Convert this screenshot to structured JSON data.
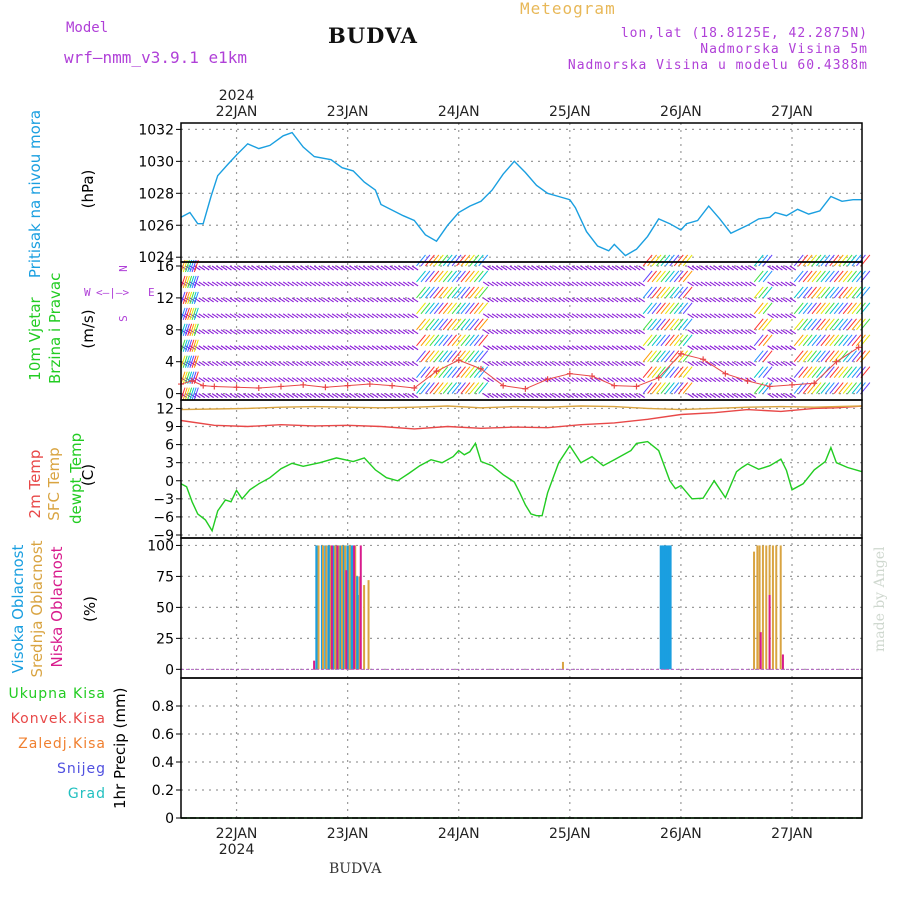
{
  "header": {
    "model_label": "Model",
    "model_name": "wrf–nmm_v3.9.1  e1km",
    "title": "BUDVA",
    "meteogram": "Meteogram",
    "lonlat": "lon,lat (18.8125E, 42.2875N)",
    "elevation": "Nadmorska Visina 5m",
    "model_elevation": "Nadmorska Visina u modelu 60.4388m"
  },
  "footer": {
    "title": "BUDVA",
    "credit": "made by Angel"
  },
  "time_axis": {
    "year": "2024",
    "days": [
      "22JAN",
      "23JAN",
      "24JAN",
      "25JAN",
      "26JAN",
      "27JAN"
    ],
    "range_days": [
      0,
      6.13
    ]
  },
  "panels": {
    "pressure": {
      "label": "Pritisak na nivou mora",
      "unit": "(hPa)"
    },
    "wind": {
      "label_1": "10m Vjetar",
      "label_2": "Brzina i Pravac",
      "unit": "(m/s)",
      "compass_w": "W",
      "compass_e": "E",
      "compass_n": "N",
      "compass_s": "S"
    },
    "temp": {
      "label_2m": "2m Temp",
      "label_sfc": "SFC Temp",
      "label_dew": "dewpt Temp",
      "unit": "(C)"
    },
    "cloud": {
      "label_high": "Visoka Oblacnost",
      "label_mid": "Srednja Oblacnost",
      "label_low": "Niska Oblacnost",
      "unit": "(%)"
    },
    "precip": {
      "unit": "1hr Precip (mm)",
      "labels": [
        "Ukupna Kisa",
        "Konvek.Kisa",
        "Zaledj.Kisa",
        "Snijeg",
        "Grad"
      ]
    }
  },
  "colors": {
    "pressure": "#1a9fe0",
    "temp2m": "#e84848",
    "sfc": "#d9a441",
    "dew": "#22cc22",
    "cloud_high": "#1a9fe0",
    "cloud_mid": "#d9a441",
    "cloud_low": "#d81b8c",
    "precip_total": "#22cc22",
    "precip_conv": "#e84848",
    "precip_frz": "#f08030",
    "precip_snow": "#5050e0",
    "precip_hail": "#22c0c0",
    "wind_purple": "#8a1ad8"
  },
  "chart_data": [
    {
      "type": "line",
      "id": "pressure",
      "ylabel": "Pritisak na nivou mora (hPa)",
      "ylim": [
        1023.7,
        1032.4
      ],
      "yticks": [
        1024,
        1026,
        1028,
        1030,
        1032
      ],
      "grid": true,
      "series": [
        {
          "name": "Pritisak na nivou mora",
          "x": [
            0,
            0.08,
            0.15,
            0.2,
            0.27,
            0.33,
            0.42,
            0.5,
            0.6,
            0.7,
            0.8,
            0.92,
            1.0,
            1.1,
            1.2,
            1.35,
            1.45,
            1.55,
            1.65,
            1.75,
            1.8,
            2.0,
            2.1,
            2.2,
            2.3,
            2.4,
            2.5,
            2.6,
            2.7,
            2.8,
            2.9,
            3.0,
            3.1,
            3.2,
            3.3,
            3.4,
            3.5,
            3.55,
            3.65,
            3.75,
            3.85,
            3.9,
            4.0,
            4.1,
            4.2,
            4.3,
            4.4,
            4.5,
            4.55,
            4.65,
            4.75,
            4.85,
            4.95,
            5.1,
            5.2,
            5.3,
            5.35,
            5.45,
            5.55,
            5.65,
            5.75,
            5.85,
            5.95,
            6.05,
            6.13
          ],
          "y": [
            1026.5,
            1026.8,
            1026.1,
            1026.1,
            1027.8,
            1029.1,
            1029.8,
            1030.4,
            1031.1,
            1030.8,
            1031.0,
            1031.6,
            1031.8,
            1030.9,
            1030.3,
            1030.1,
            1029.6,
            1029.4,
            1028.7,
            1028.2,
            1027.3,
            1026.6,
            1026.3,
            1025.4,
            1025.0,
            1026.0,
            1026.8,
            1027.2,
            1027.5,
            1028.2,
            1029.2,
            1030.0,
            1029.3,
            1028.5,
            1028.0,
            1027.8,
            1027.6,
            1027.1,
            1025.6,
            1024.7,
            1024.4,
            1024.8,
            1024.1,
            1024.5,
            1025.3,
            1026.4,
            1026.1,
            1025.7,
            1026.1,
            1026.3,
            1027.2,
            1026.4,
            1025.5,
            1026.0,
            1026.4,
            1026.5,
            1026.8,
            1026.6,
            1027.0,
            1026.7,
            1026.9,
            1027.8,
            1027.5,
            1027.6,
            1027.6
          ]
        }
      ]
    },
    {
      "type": "scatter",
      "id": "wind",
      "ylabel": "10m Vjetar Brzina i Pravac (m/s)",
      "ylim": [
        -0.8,
        16.5
      ],
      "yticks": [
        0,
        4,
        8,
        12,
        16
      ],
      "grid": true,
      "series": [
        {
          "name": "brzina",
          "x": [
            0,
            0.1,
            0.2,
            0.3,
            0.5,
            0.7,
            0.9,
            1.1,
            1.3,
            1.5,
            1.7,
            1.9,
            2.1,
            2.3,
            2.5,
            2.7,
            2.9,
            3.1,
            3.3,
            3.5,
            3.7,
            3.9,
            4.1,
            4.3,
            4.5,
            4.7,
            4.9,
            5.1,
            5.3,
            5.5,
            5.7,
            5.9,
            6.1
          ],
          "y": [
            1.2,
            1.6,
            1.0,
            0.9,
            0.8,
            0.7,
            0.9,
            1.1,
            0.8,
            1.0,
            1.2,
            1.0,
            0.7,
            2.8,
            4.2,
            3.1,
            1.0,
            0.6,
            1.8,
            2.5,
            2.2,
            1.0,
            0.9,
            2.0,
            5.0,
            4.3,
            2.5,
            1.6,
            0.9,
            1.1,
            1.3,
            4.0,
            5.8
          ]
        }
      ]
    },
    {
      "type": "line",
      "id": "temp",
      "ylabel": "Temp (C)",
      "ylim": [
        -9.5,
        13.4
      ],
      "yticks": [
        -9,
        -6,
        -3,
        0,
        3,
        6,
        9,
        12
      ],
      "grid": true,
      "series": [
        {
          "name": "2m Temp",
          "x": [
            0,
            0.3,
            0.6,
            0.9,
            1.2,
            1.5,
            1.8,
            2.1,
            2.4,
            2.7,
            3.0,
            3.3,
            3.6,
            3.9,
            4.2,
            4.5,
            4.8,
            5.1,
            5.4,
            5.7,
            5.9,
            6.13
          ],
          "y": [
            10.0,
            9.2,
            9.0,
            9.3,
            9.1,
            9.2,
            9.0,
            8.6,
            9.0,
            8.7,
            8.9,
            8.8,
            9.3,
            9.6,
            10.2,
            11.0,
            11.3,
            11.8,
            11.5,
            12.0,
            12.1,
            12.4
          ]
        },
        {
          "name": "SFC Temp",
          "x": [
            0,
            0.3,
            0.6,
            0.9,
            1.2,
            1.5,
            1.8,
            2.1,
            2.4,
            2.7,
            3.0,
            3.3,
            3.6,
            3.9,
            4.2,
            4.5,
            4.8,
            5.1,
            5.4,
            5.7,
            5.9,
            6.13
          ],
          "y": [
            11.8,
            11.9,
            12.0,
            12.2,
            12.3,
            12.2,
            12.1,
            12.2,
            12.4,
            12.1,
            12.3,
            12.2,
            12.4,
            12.3,
            12.0,
            11.8,
            12.0,
            12.2,
            12.3,
            12.2,
            12.3,
            12.4
          ]
        },
        {
          "name": "dewpt Temp",
          "x": [
            0,
            0.05,
            0.1,
            0.15,
            0.22,
            0.28,
            0.33,
            0.4,
            0.45,
            0.5,
            0.55,
            0.62,
            0.7,
            0.8,
            0.9,
            1.0,
            1.1,
            1.25,
            1.4,
            1.55,
            1.65,
            1.75,
            1.85,
            1.95,
            2.05,
            2.15,
            2.25,
            2.35,
            2.45,
            2.5,
            2.55,
            2.6,
            2.65,
            2.7,
            2.8,
            2.9,
            3.0,
            3.05,
            3.1,
            3.15,
            3.2,
            3.25,
            3.3,
            3.4,
            3.5,
            3.6,
            3.7,
            3.8,
            3.9,
            4.0,
            4.05,
            4.1,
            4.2,
            4.3,
            4.4,
            4.45,
            4.5,
            4.6,
            4.7,
            4.8,
            4.9,
            5.0,
            5.05,
            5.1,
            5.2,
            5.3,
            5.4,
            5.45,
            5.5,
            5.6,
            5.7,
            5.8,
            5.85,
            5.9,
            6.0,
            6.13
          ],
          "y": [
            -0.5,
            -1.0,
            -3.5,
            -5.5,
            -6.5,
            -8.3,
            -5.0,
            -3.2,
            -3.5,
            -1.6,
            -3.0,
            -1.5,
            -0.5,
            0.5,
            2.0,
            2.9,
            2.4,
            3.0,
            3.8,
            3.2,
            3.8,
            1.8,
            0.5,
            0.0,
            1.2,
            2.5,
            3.5,
            3.0,
            4.0,
            5.0,
            4.3,
            4.8,
            6.2,
            3.2,
            2.5,
            1.0,
            -0.2,
            -2.0,
            -4.0,
            -5.5,
            -5.8,
            -5.8,
            -2.0,
            3.0,
            5.8,
            3.0,
            4.0,
            2.5,
            3.5,
            4.5,
            5.0,
            6.2,
            6.5,
            5.0,
            0.0,
            -1.3,
            -0.8,
            -3.0,
            -2.9,
            0.0,
            -2.8,
            1.5,
            2.2,
            2.8,
            1.9,
            2.5,
            3.6,
            1.7,
            -1.5,
            -0.5,
            1.8,
            3.2,
            5.5,
            3.0,
            2.2,
            1.5
          ]
        }
      ]
    },
    {
      "type": "bar",
      "id": "cloud",
      "ylabel": "Oblacnost (%)",
      "ylim": [
        -7,
        106
      ],
      "yticks": [
        0,
        25,
        50,
        75,
        100
      ],
      "grid": true,
      "series": [
        {
          "name": "Visoka Oblacnost",
          "x": [
            1.22,
            1.27,
            1.3,
            1.33,
            1.37,
            1.4,
            1.43,
            1.46,
            1.5,
            1.53,
            1.55,
            1.58,
            1.6,
            4.32,
            4.34,
            4.36,
            4.38,
            4.4
          ],
          "values": [
            100,
            100,
            100,
            100,
            100,
            100,
            100,
            100,
            100,
            100,
            100,
            75,
            60,
            100,
            100,
            100,
            100,
            100
          ]
        },
        {
          "name": "Srednja Oblacnost",
          "x": [
            1.24,
            1.28,
            1.31,
            1.35,
            1.39,
            1.42,
            1.45,
            1.48,
            1.52,
            1.57,
            1.61,
            1.65,
            1.69,
            3.44,
            5.16,
            5.19,
            5.21,
            5.24,
            5.27,
            5.3,
            5.33,
            5.36,
            5.4
          ],
          "values": [
            100,
            100,
            100,
            100,
            100,
            100,
            100,
            100,
            100,
            100,
            75,
            68,
            72,
            6,
            95,
            100,
            100,
            100,
            100,
            100,
            100,
            100,
            100
          ]
        },
        {
          "name": "Niska Oblacnost",
          "x": [
            1.2,
            1.36,
            1.41,
            1.49,
            1.56,
            1.62,
            5.22,
            5.3,
            5.42
          ],
          "values": [
            7,
            100,
            100,
            80,
            100,
            100,
            30,
            60,
            12
          ]
        }
      ]
    },
    {
      "type": "line",
      "id": "precip",
      "ylabel": "1hr Precip (mm)",
      "ylim": [
        0,
        1.0
      ],
      "yticks": [
        0,
        0.2,
        0.4,
        0.6,
        0.8
      ],
      "grid": true,
      "series": [
        {
          "name": "Ukupna Kisa",
          "x": [
            0,
            6.13
          ],
          "y": [
            0,
            0
          ]
        }
      ]
    }
  ]
}
